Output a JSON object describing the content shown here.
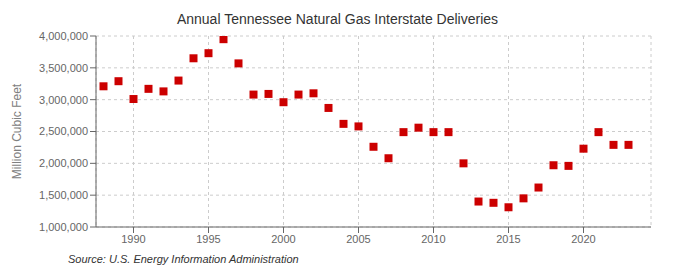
{
  "chart_data": {
    "type": "scatter",
    "title": "Annual Tennessee Natural Gas Interstate Deliveries",
    "ylabel": "Million Cubic Feet",
    "annotations": [
      "Source: U.S. Energy Information Administration"
    ],
    "x": [
      1988,
      1989,
      1990,
      1991,
      1992,
      1993,
      1994,
      1995,
      1996,
      1997,
      1998,
      1999,
      2000,
      2001,
      2002,
      2003,
      2004,
      2005,
      2006,
      2007,
      2008,
      2009,
      2010,
      2011,
      2012,
      2013,
      2014,
      2015,
      2016,
      2017,
      2018,
      2019,
      2020,
      2021,
      2022,
      2023
    ],
    "values": [
      3210000,
      3290000,
      3010000,
      3170000,
      3130000,
      3300000,
      3650000,
      3730000,
      3950000,
      3570000,
      3080000,
      3090000,
      2960000,
      3080000,
      3100000,
      2870000,
      2620000,
      2580000,
      2260000,
      2080000,
      2490000,
      2560000,
      2490000,
      2490000,
      2000000,
      1400000,
      1380000,
      1310000,
      1450000,
      1620000,
      1970000,
      1960000,
      2230000,
      2490000,
      2290000,
      2290000
    ],
    "color": "#cc0000",
    "marker": "square",
    "xlim": [
      1987.5,
      2024.5
    ],
    "xticks": [
      1990,
      1995,
      2000,
      2005,
      2010,
      2015,
      2020
    ],
    "ylim": [
      1000000,
      4000000
    ],
    "yticks": [
      {
        "value": 1000000,
        "label": "1,000,000"
      },
      {
        "value": 1500000,
        "label": "1,500,000"
      },
      {
        "value": 2000000,
        "label": "2,000,000"
      },
      {
        "value": 2500000,
        "label": "2,500,000"
      },
      {
        "value": 3000000,
        "label": "3,000,000"
      },
      {
        "value": 3500000,
        "label": "3,500,000"
      },
      {
        "value": 4000000,
        "label": "4,000,000"
      }
    ],
    "grid": true
  }
}
